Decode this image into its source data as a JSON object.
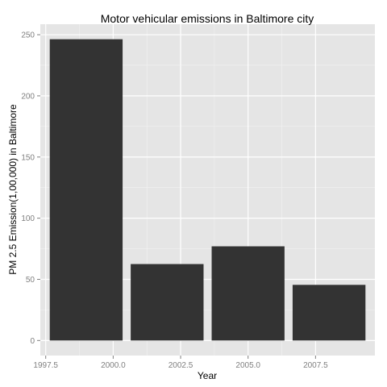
{
  "chart_data": {
    "type": "bar",
    "title": "Motor vehicular emissions in Baltimore city",
    "xlabel": "Year",
    "ylabel": "PM 2.5 Emission(1,00,000) in Baltimore",
    "x": [
      1999,
      2002,
      2005,
      2008
    ],
    "values": [
      246.3,
      62.5,
      77,
      45.5
    ],
    "bar_width_years": 2.7,
    "xlim": [
      1997.3,
      2009.7
    ],
    "ylim": [
      -12.3,
      258.6
    ],
    "xticks": [
      1997.5,
      2000.0,
      2002.5,
      2005.0,
      2007.5
    ],
    "xtick_labels": [
      "1997.5",
      "2000.0",
      "2002.5",
      "2005.0",
      "2007.5"
    ],
    "yticks": [
      0,
      50,
      100,
      150,
      200,
      250
    ],
    "ytick_labels": [
      "0",
      "50",
      "100",
      "150",
      "200",
      "250"
    ],
    "grid": true,
    "colors": {
      "panel": "#e5e5e5",
      "grid_major": "#ffffff",
      "grid_minor": "#f2f2f2",
      "bar": "#333333"
    }
  }
}
